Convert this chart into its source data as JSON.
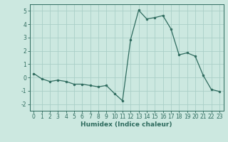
{
  "x": [
    0,
    1,
    2,
    3,
    4,
    5,
    6,
    7,
    8,
    9,
    10,
    11,
    12,
    13,
    14,
    15,
    16,
    17,
    18,
    19,
    20,
    21,
    22,
    23
  ],
  "y": [
    0.3,
    -0.1,
    -0.3,
    -0.2,
    -0.3,
    -0.5,
    -0.5,
    -0.6,
    -0.7,
    -0.6,
    -1.2,
    -1.75,
    2.85,
    5.05,
    4.4,
    4.5,
    4.65,
    3.65,
    1.7,
    1.85,
    1.6,
    0.15,
    -0.9,
    -1.05
  ],
  "line_color": "#2e6b5e",
  "marker_color": "#2e6b5e",
  "bg_color": "#cce8e0",
  "grid_color": "#aacfc8",
  "xlabel": "Humidex (Indice chaleur)",
  "ylim": [
    -2.5,
    5.5
  ],
  "xlim": [
    -0.5,
    23.5
  ],
  "yticks": [
    -2,
    -1,
    0,
    1,
    2,
    3,
    4,
    5
  ],
  "xticks": [
    0,
    1,
    2,
    3,
    4,
    5,
    6,
    7,
    8,
    9,
    10,
    11,
    12,
    13,
    14,
    15,
    16,
    17,
    18,
    19,
    20,
    21,
    22,
    23
  ],
  "tick_fontsize": 5.5,
  "xlabel_fontsize": 6.5,
  "linewidth": 0.9,
  "markersize": 2.0
}
